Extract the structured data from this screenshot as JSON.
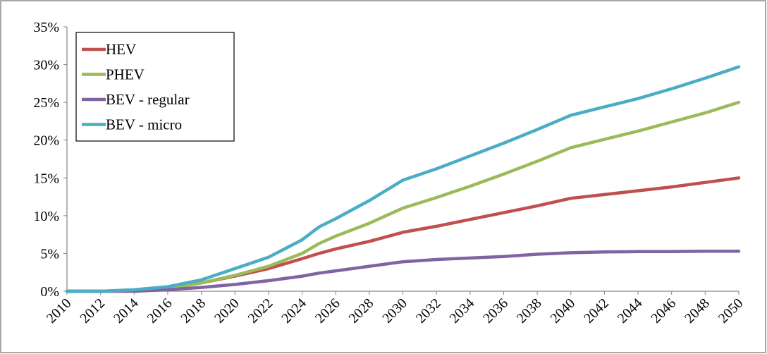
{
  "chart_data": {
    "type": "line",
    "title": "",
    "xlabel": "",
    "ylabel": "",
    "x": [
      2010,
      2012,
      2014,
      2016,
      2018,
      2020,
      2022,
      2024,
      2025,
      2026,
      2028,
      2030,
      2032,
      2034,
      2036,
      2038,
      2040,
      2042,
      2044,
      2046,
      2048,
      2050
    ],
    "x_tick_labels": [
      "2010",
      "2012",
      "2014",
      "2016",
      "2018",
      "2020",
      "2022",
      "2024",
      "2026",
      "2028",
      "2030",
      "2032",
      "2034",
      "2036",
      "2038",
      "2040",
      "2042",
      "2044",
      "2046",
      "2048",
      "2050"
    ],
    "y_tick_labels": [
      "0%",
      "5%",
      "10%",
      "15%",
      "20%",
      "25%",
      "30%",
      "35%"
    ],
    "ylim": [
      0,
      35
    ],
    "xlim": [
      2010,
      2050
    ],
    "y_unit": "%",
    "grid": "none",
    "legend_position": "top-left",
    "series": [
      {
        "name": "HEV",
        "color": "#c0504d",
        "values": [
          0,
          0,
          0.1,
          0.4,
          1.1,
          2.0,
          3.0,
          4.3,
          5.0,
          5.6,
          6.6,
          7.8,
          8.6,
          9.5,
          10.4,
          11.3,
          12.3,
          12.8,
          13.3,
          13.8,
          14.4,
          15.0
        ]
      },
      {
        "name": "PHEV",
        "color": "#9bbb59",
        "values": [
          0,
          0,
          0.1,
          0.4,
          1.1,
          2.1,
          3.3,
          5.0,
          6.3,
          7.3,
          9.0,
          11.0,
          12.4,
          13.9,
          15.5,
          17.2,
          19.0,
          20.1,
          21.2,
          22.4,
          23.6,
          25.0
        ]
      },
      {
        "name": "BEV - regular",
        "color": "#8064a2",
        "values": [
          0,
          0,
          0,
          0.2,
          0.5,
          0.9,
          1.4,
          2.0,
          2.4,
          2.7,
          3.3,
          3.9,
          4.2,
          4.4,
          4.6,
          4.9,
          5.1,
          5.2,
          5.25,
          5.25,
          5.3,
          5.3
        ]
      },
      {
        "name": "BEV - micro",
        "color": "#4bacc6",
        "values": [
          0,
          0,
          0.2,
          0.6,
          1.5,
          3.0,
          4.5,
          6.8,
          8.5,
          9.6,
          12.0,
          14.7,
          16.2,
          17.9,
          19.6,
          21.4,
          23.3,
          24.4,
          25.5,
          26.8,
          28.2,
          29.7
        ]
      }
    ]
  }
}
